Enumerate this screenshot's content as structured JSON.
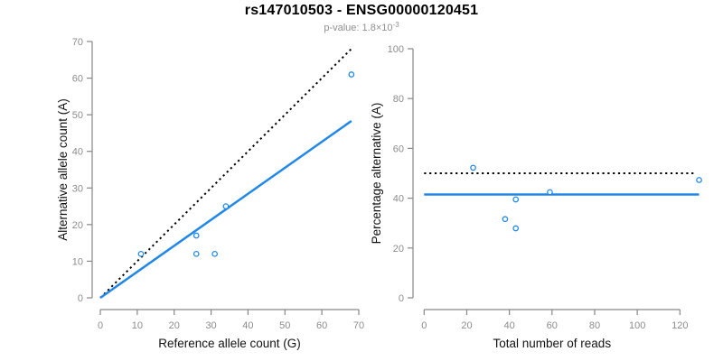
{
  "header": {
    "title": "rs147010503 - ENSG00000120451",
    "subtitle": {
      "label": "p-value: ",
      "mantissa": "1.8",
      "times": "×",
      "base": "10",
      "exponent": "-3"
    }
  },
  "colors": {
    "accent_blue": "#2087E8",
    "dotted_black": "#000000",
    "axis_line": "#878787",
    "tick_text": "#8c8c8c",
    "label_text": "#111111",
    "subtitle_text": "#8f8f8f",
    "title_text": "#000000",
    "background": "#ffffff"
  },
  "chart_data": [
    {
      "name": "allele-counts",
      "type": "scatter",
      "xlabel": "Reference allele count (G)",
      "ylabel": "Alternative allele count (A)",
      "xlim": [
        0,
        70
      ],
      "ylim": [
        0,
        70
      ],
      "xticks": [
        0,
        10,
        20,
        30,
        40,
        50,
        60,
        70
      ],
      "yticks": [
        0,
        10,
        20,
        30,
        40,
        50,
        60,
        70
      ],
      "grid": false,
      "legend": false,
      "points": [
        [
          11,
          12
        ],
        [
          26,
          12
        ],
        [
          26,
          17
        ],
        [
          31,
          12
        ],
        [
          34,
          25
        ],
        [
          68,
          61
        ]
      ],
      "lines": [
        {
          "name": "identity-line",
          "style": "dotted",
          "color": "#000000",
          "from": [
            0,
            0
          ],
          "to": [
            68,
            68
          ]
        },
        {
          "name": "fit-line",
          "style": "solid",
          "color": "#2087E8",
          "from": [
            0,
            0
          ],
          "to": [
            68,
            48.3
          ]
        }
      ]
    },
    {
      "name": "percentage-reads",
      "type": "scatter",
      "xlabel": "Total number of reads",
      "ylabel": "Percentage alternative (A)",
      "xlim": [
        0,
        120
      ],
      "ylim": [
        0,
        100
      ],
      "xticks": [
        0,
        20,
        40,
        60,
        80,
        100,
        120
      ],
      "yticks": [
        0,
        20,
        40,
        60,
        80,
        100
      ],
      "grid": false,
      "legend": false,
      "points": [
        [
          23,
          52.2
        ],
        [
          38,
          31.6
        ],
        [
          43,
          27.9
        ],
        [
          43,
          39.5
        ],
        [
          59,
          42.4
        ],
        [
          129,
          47.3
        ]
      ],
      "lines": [
        {
          "name": "expected-50-line",
          "style": "dotted",
          "color": "#000000",
          "from": [
            0,
            50
          ],
          "to": [
            127,
            50
          ]
        },
        {
          "name": "mean-ratio-line",
          "style": "solid",
          "color": "#2087E8",
          "from": [
            0,
            41.5
          ],
          "to": [
            129,
            41.5
          ]
        }
      ]
    }
  ]
}
